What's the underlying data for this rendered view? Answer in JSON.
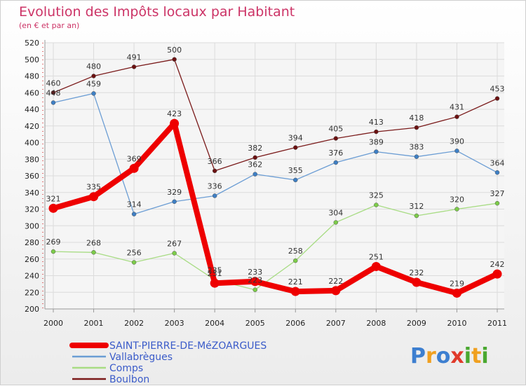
{
  "chart_data": {
    "type": "line",
    "title": "Evolution des Impôts locaux par Habitant",
    "subtitle": "(en € et par an)",
    "xlabel": "",
    "ylabel": "",
    "categories": [
      "2000",
      "2001",
      "2002",
      "2003",
      "2004",
      "2005",
      "2006",
      "2007",
      "2008",
      "2009",
      "2010",
      "2011"
    ],
    "ylim": [
      200,
      520
    ],
    "yticks": [
      "200",
      "220",
      "240",
      "260",
      "280",
      "300",
      "320",
      "340",
      "360",
      "380",
      "400",
      "420",
      "440",
      "460",
      "480",
      "500",
      "520"
    ],
    "grid": true,
    "legend_position": "bottom-left",
    "series": [
      {
        "name": "Boulbon",
        "color": "#7a1a1a",
        "point_color": "#6b1111",
        "emphasis": false,
        "values": [
          460,
          480,
          491,
          500,
          366,
          382,
          394,
          405,
          413,
          418,
          431,
          453
        ]
      },
      {
        "name": "Vallabrègues",
        "color": "#6b9dd4",
        "point_color": "#3e7fc4",
        "emphasis": false,
        "values": [
          448,
          459,
          314,
          329,
          336,
          362,
          355,
          376,
          389,
          383,
          390,
          364
        ]
      },
      {
        "name": "Comps",
        "color": "#a8dc84",
        "point_color": "#7ccc49",
        "emphasis": false,
        "values": [
          269,
          268,
          256,
          267,
          235,
          223,
          258,
          304,
          325,
          312,
          320,
          327
        ]
      },
      {
        "name": "SAINT-PIERRE-DE-MéZOARGUES",
        "color": "#ee0000",
        "point_color": "#ee0000",
        "emphasis": true,
        "values": [
          321,
          335,
          369,
          423,
          231,
          233,
          221,
          222,
          251,
          232,
          219,
          242
        ]
      }
    ],
    "legend_order": [
      "SAINT-PIERRE-DE-MéZOARGUES",
      "Vallabrègues",
      "Comps",
      "Boulbon"
    ]
  },
  "logo": {
    "letters": [
      "P",
      "r",
      "o",
      "x",
      "i",
      "t",
      "i"
    ],
    "colors": [
      "#3d7fd0",
      "#f0a020",
      "#3d7fd0",
      "#e03a2a",
      "#4aa830",
      "#f0a020",
      "#4aa830"
    ]
  }
}
